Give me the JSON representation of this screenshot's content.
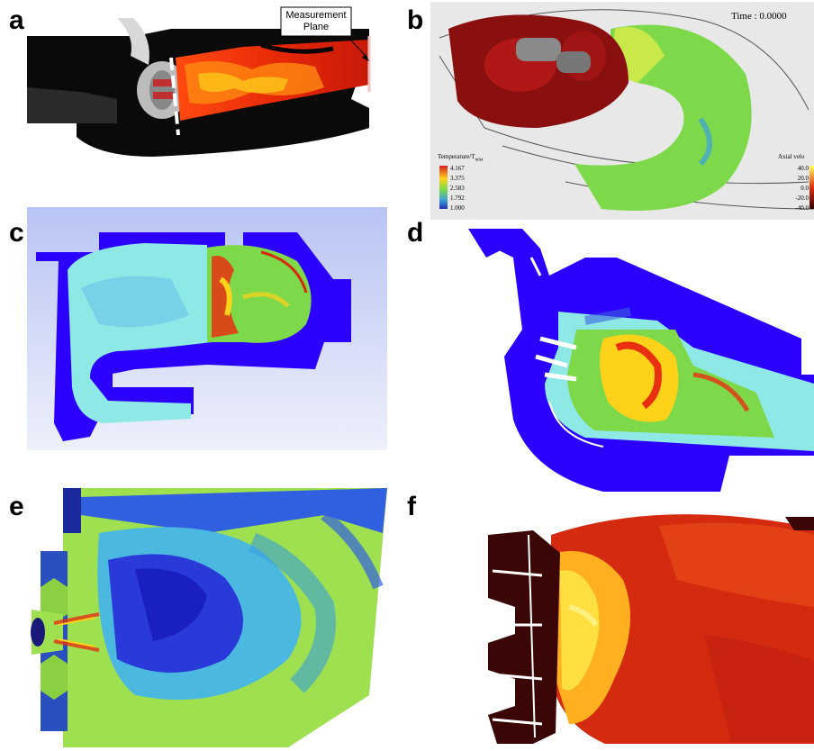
{
  "panels": {
    "a": {
      "label": "a",
      "annotation_line1": "Measurement",
      "annotation_line2": "Plane"
    },
    "b": {
      "label": "b",
      "time_text": "Time : 0.0000",
      "colorbar_title": "Temperature/T",
      "colorbar_title_sub": "inlet",
      "colorbar_ticks": [
        "4.167",
        "3.375",
        "2.583",
        "1.792",
        "1.000"
      ],
      "axial_title": "Axial velo",
      "axial_ticks": [
        "40.0",
        "20.0",
        "0.0",
        "-20.0",
        "-40.0"
      ]
    },
    "c": {
      "label": "c"
    },
    "d": {
      "label": "d"
    },
    "e": {
      "label": "e"
    },
    "f": {
      "label": "f"
    }
  },
  "colors": {
    "cold_blue": "#2b00ff",
    "hot_red": "#d42a10",
    "flame_yellow": "#ffd21a",
    "green": "#7ed94a",
    "cyan": "#8ee8e6",
    "dark_red": "#3a0606"
  }
}
